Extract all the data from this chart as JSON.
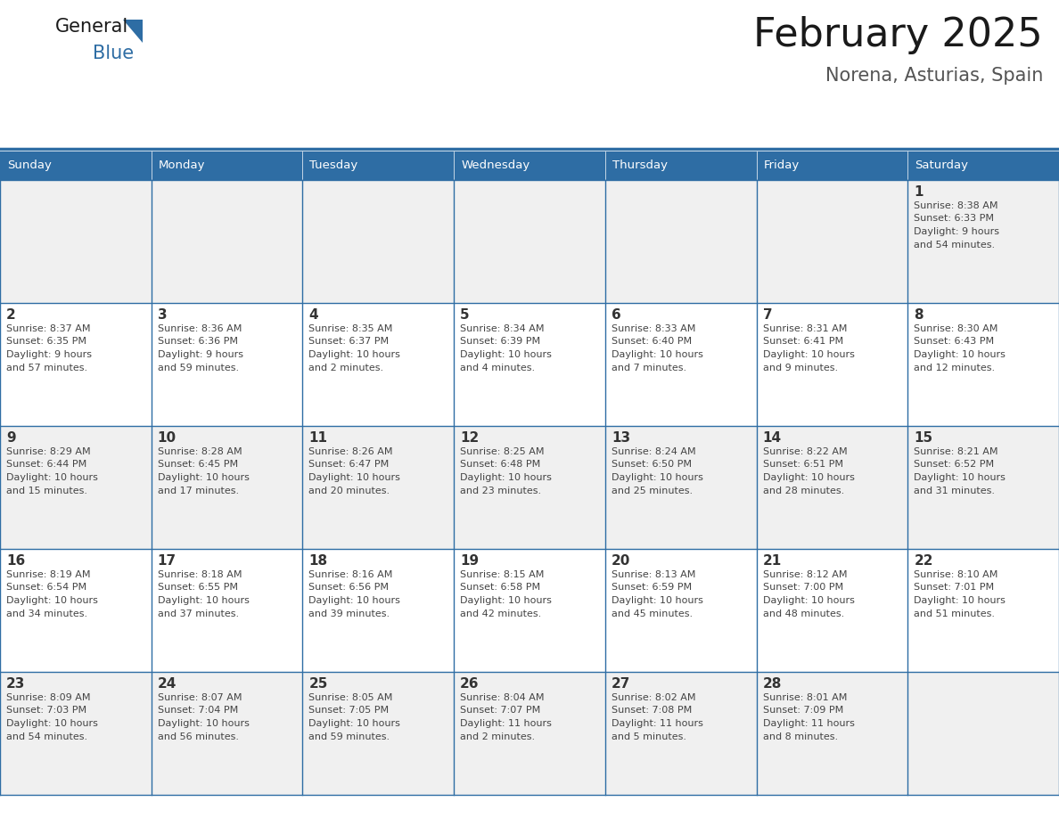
{
  "title": "February 2025",
  "subtitle": "Norena, Asturias, Spain",
  "header_bg": "#2E6DA4",
  "header_text": "#FFFFFF",
  "cell_bg_even": "#F0F0F0",
  "cell_bg_odd": "#FFFFFF",
  "border_color": "#2E6DA4",
  "text_color": "#444444",
  "day_num_color": "#333333",
  "day_headers": [
    "Sunday",
    "Monday",
    "Tuesday",
    "Wednesday",
    "Thursday",
    "Friday",
    "Saturday"
  ],
  "days_data": [
    {
      "day": 1,
      "col": 6,
      "row": 0,
      "sunrise": "8:38 AM",
      "sunset": "6:33 PM",
      "daylight": "9 hours and 54 minutes."
    },
    {
      "day": 2,
      "col": 0,
      "row": 1,
      "sunrise": "8:37 AM",
      "sunset": "6:35 PM",
      "daylight": "9 hours and 57 minutes."
    },
    {
      "day": 3,
      "col": 1,
      "row": 1,
      "sunrise": "8:36 AM",
      "sunset": "6:36 PM",
      "daylight": "9 hours and 59 minutes."
    },
    {
      "day": 4,
      "col": 2,
      "row": 1,
      "sunrise": "8:35 AM",
      "sunset": "6:37 PM",
      "daylight": "10 hours and 2 minutes."
    },
    {
      "day": 5,
      "col": 3,
      "row": 1,
      "sunrise": "8:34 AM",
      "sunset": "6:39 PM",
      "daylight": "10 hours and 4 minutes."
    },
    {
      "day": 6,
      "col": 4,
      "row": 1,
      "sunrise": "8:33 AM",
      "sunset": "6:40 PM",
      "daylight": "10 hours and 7 minutes."
    },
    {
      "day": 7,
      "col": 5,
      "row": 1,
      "sunrise": "8:31 AM",
      "sunset": "6:41 PM",
      "daylight": "10 hours and 9 minutes."
    },
    {
      "day": 8,
      "col": 6,
      "row": 1,
      "sunrise": "8:30 AM",
      "sunset": "6:43 PM",
      "daylight": "10 hours and 12 minutes."
    },
    {
      "day": 9,
      "col": 0,
      "row": 2,
      "sunrise": "8:29 AM",
      "sunset": "6:44 PM",
      "daylight": "10 hours and 15 minutes."
    },
    {
      "day": 10,
      "col": 1,
      "row": 2,
      "sunrise": "8:28 AM",
      "sunset": "6:45 PM",
      "daylight": "10 hours and 17 minutes."
    },
    {
      "day": 11,
      "col": 2,
      "row": 2,
      "sunrise": "8:26 AM",
      "sunset": "6:47 PM",
      "daylight": "10 hours and 20 minutes."
    },
    {
      "day": 12,
      "col": 3,
      "row": 2,
      "sunrise": "8:25 AM",
      "sunset": "6:48 PM",
      "daylight": "10 hours and 23 minutes."
    },
    {
      "day": 13,
      "col": 4,
      "row": 2,
      "sunrise": "8:24 AM",
      "sunset": "6:50 PM",
      "daylight": "10 hours and 25 minutes."
    },
    {
      "day": 14,
      "col": 5,
      "row": 2,
      "sunrise": "8:22 AM",
      "sunset": "6:51 PM",
      "daylight": "10 hours and 28 minutes."
    },
    {
      "day": 15,
      "col": 6,
      "row": 2,
      "sunrise": "8:21 AM",
      "sunset": "6:52 PM",
      "daylight": "10 hours and 31 minutes."
    },
    {
      "day": 16,
      "col": 0,
      "row": 3,
      "sunrise": "8:19 AM",
      "sunset": "6:54 PM",
      "daylight": "10 hours and 34 minutes."
    },
    {
      "day": 17,
      "col": 1,
      "row": 3,
      "sunrise": "8:18 AM",
      "sunset": "6:55 PM",
      "daylight": "10 hours and 37 minutes."
    },
    {
      "day": 18,
      "col": 2,
      "row": 3,
      "sunrise": "8:16 AM",
      "sunset": "6:56 PM",
      "daylight": "10 hours and 39 minutes."
    },
    {
      "day": 19,
      "col": 3,
      "row": 3,
      "sunrise": "8:15 AM",
      "sunset": "6:58 PM",
      "daylight": "10 hours and 42 minutes."
    },
    {
      "day": 20,
      "col": 4,
      "row": 3,
      "sunrise": "8:13 AM",
      "sunset": "6:59 PM",
      "daylight": "10 hours and 45 minutes."
    },
    {
      "day": 21,
      "col": 5,
      "row": 3,
      "sunrise": "8:12 AM",
      "sunset": "7:00 PM",
      "daylight": "10 hours and 48 minutes."
    },
    {
      "day": 22,
      "col": 6,
      "row": 3,
      "sunrise": "8:10 AM",
      "sunset": "7:01 PM",
      "daylight": "10 hours and 51 minutes."
    },
    {
      "day": 23,
      "col": 0,
      "row": 4,
      "sunrise": "8:09 AM",
      "sunset": "7:03 PM",
      "daylight": "10 hours and 54 minutes."
    },
    {
      "day": 24,
      "col": 1,
      "row": 4,
      "sunrise": "8:07 AM",
      "sunset": "7:04 PM",
      "daylight": "10 hours and 56 minutes."
    },
    {
      "day": 25,
      "col": 2,
      "row": 4,
      "sunrise": "8:05 AM",
      "sunset": "7:05 PM",
      "daylight": "10 hours and 59 minutes."
    },
    {
      "day": 26,
      "col": 3,
      "row": 4,
      "sunrise": "8:04 AM",
      "sunset": "7:07 PM",
      "daylight": "11 hours and 2 minutes."
    },
    {
      "day": 27,
      "col": 4,
      "row": 4,
      "sunrise": "8:02 AM",
      "sunset": "7:08 PM",
      "daylight": "11 hours and 5 minutes."
    },
    {
      "day": 28,
      "col": 5,
      "row": 4,
      "sunrise": "8:01 AM",
      "sunset": "7:09 PM",
      "daylight": "11 hours and 8 minutes."
    }
  ],
  "num_rows": 5,
  "num_cols": 7,
  "fig_width": 11.88,
  "fig_height": 9.18,
  "dpi": 100
}
